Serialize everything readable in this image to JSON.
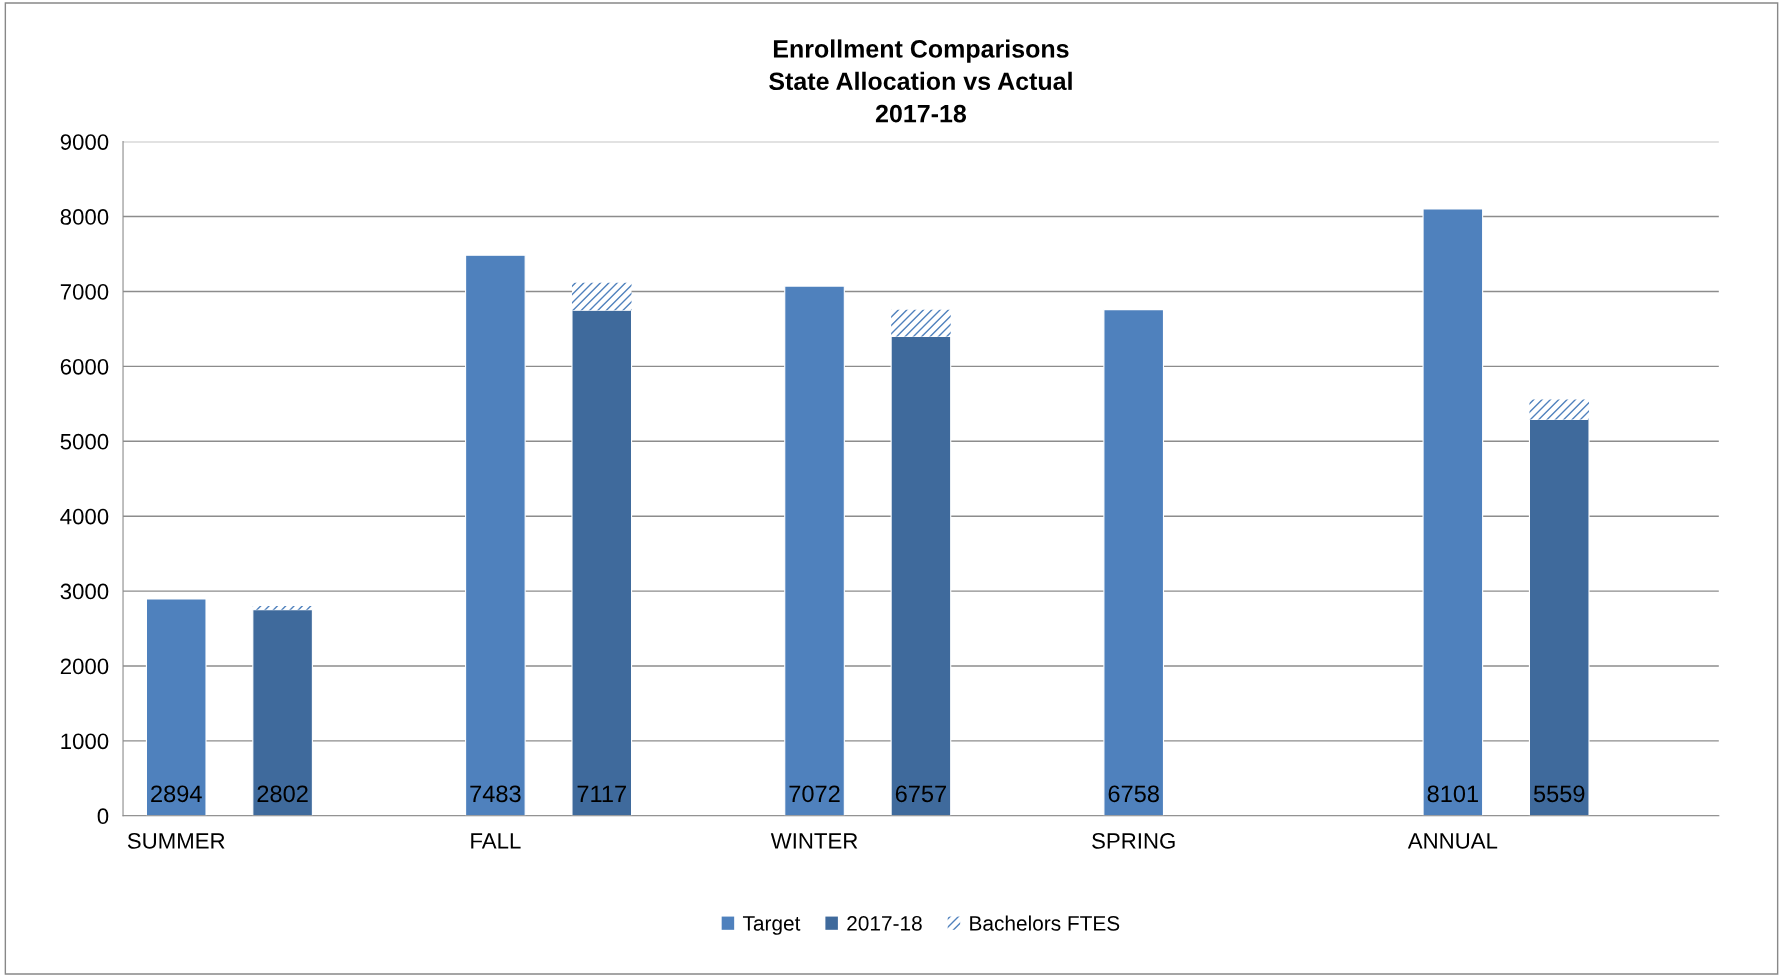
{
  "chart_data": {
    "type": "bar",
    "title": "Enrollment Comparisons\nState Allocation vs Actual\n2017-18",
    "categories": [
      "SUMMER",
      null,
      null,
      "FALL",
      null,
      null,
      "WINTER",
      null,
      null,
      "SPRING",
      null,
      null,
      "ANNUAL",
      null,
      null
    ],
    "stacked": true,
    "series": [
      {
        "name": "Target",
        "color": "#4f81bd",
        "values": [
          2894,
          null,
          null,
          7483,
          null,
          null,
          7072,
          null,
          null,
          6758,
          null,
          null,
          8101,
          null,
          null
        ]
      },
      {
        "name": "2017-18",
        "color": "#3f6a9c",
        "values": [
          null,
          2750,
          null,
          null,
          6750,
          null,
          null,
          6400,
          null,
          null,
          null,
          null,
          null,
          5290,
          null
        ]
      },
      {
        "name": "Bachelors FTES",
        "color": "#4f81bd",
        "values": [
          null,
          52,
          null,
          null,
          367,
          null,
          null,
          357,
          null,
          null,
          null,
          null,
          null,
          269,
          null
        ]
      }
    ],
    "totals": [
      "2894",
      "2802",
      null,
      "7483",
      "7117",
      null,
      "7072",
      "6757",
      null,
      "6758",
      null,
      null,
      "8101",
      "5559",
      null
    ],
    "ylim": [
      0,
      9000
    ],
    "yticks": [
      0,
      1000,
      2000,
      3000,
      4000,
      5000,
      6000,
      7000,
      8000,
      9000
    ],
    "grid": "y",
    "legend": "bottom"
  }
}
